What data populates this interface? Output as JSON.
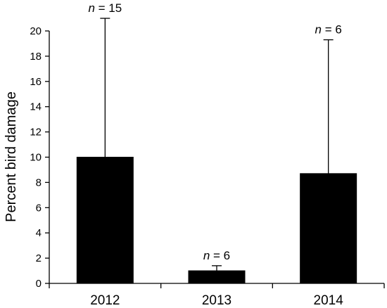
{
  "chart_data": {
    "type": "bar",
    "title": "",
    "xlabel": "",
    "ylabel": "Percent bird damage",
    "ylim": [
      0,
      20
    ],
    "yticks": [
      0,
      2,
      4,
      6,
      8,
      10,
      12,
      14,
      16,
      18,
      20
    ],
    "grid": false,
    "categories": [
      "2012",
      "2013",
      "2014"
    ],
    "values": [
      10.0,
      1.0,
      8.7
    ],
    "error_upper": [
      21.0,
      1.4,
      19.3
    ],
    "bar_color": "#000000",
    "annotations": [
      {
        "category": "2012",
        "symbol": "n",
        "text": " = 15"
      },
      {
        "category": "2013",
        "symbol": "n",
        "text": " = 6"
      },
      {
        "category": "2014",
        "symbol": "n",
        "text": " = 6"
      }
    ]
  }
}
